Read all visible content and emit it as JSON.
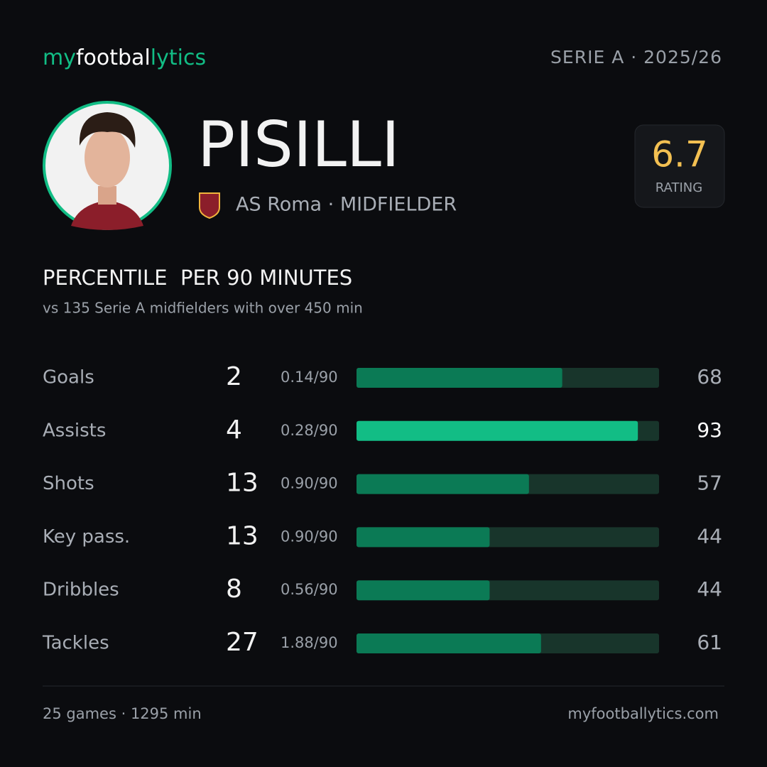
{
  "header": {
    "logo": [
      "my",
      "footbal",
      "lytics"
    ],
    "competition": "SERIE A · 2025/26"
  },
  "player": {
    "name": "PISILLI",
    "club_line": "AS Roma · MIDFIELDER",
    "rating": 6.7,
    "rating_label": "RATING"
  },
  "chart_data": {
    "type": "bar",
    "title": "PERCENTILE  PER 90 MINUTES",
    "subtitle": "vs 135 Serie A midfielders with over 450 min",
    "categories": [
      "Goals",
      "Assists",
      "Shots",
      "Key pass.",
      "Dribbles",
      "Tackles"
    ],
    "totals": [
      2,
      4,
      13,
      13,
      8,
      27
    ],
    "per_90": [
      "0.14/90",
      "0.28/90",
      "0.90/90",
      "0.90/90",
      "0.56/90",
      "1.88/90"
    ],
    "values": [
      68,
      93,
      57,
      44,
      44,
      61
    ],
    "colors": [
      "#0b7a55",
      "#12bd85",
      "#0b7a55",
      "#0b7a55",
      "#0b7a55",
      "#0b7a55"
    ],
    "xlim": [
      0,
      100
    ]
  },
  "footer": {
    "summary": "25 games · 1295 min",
    "site": "myfootballytics.com"
  }
}
